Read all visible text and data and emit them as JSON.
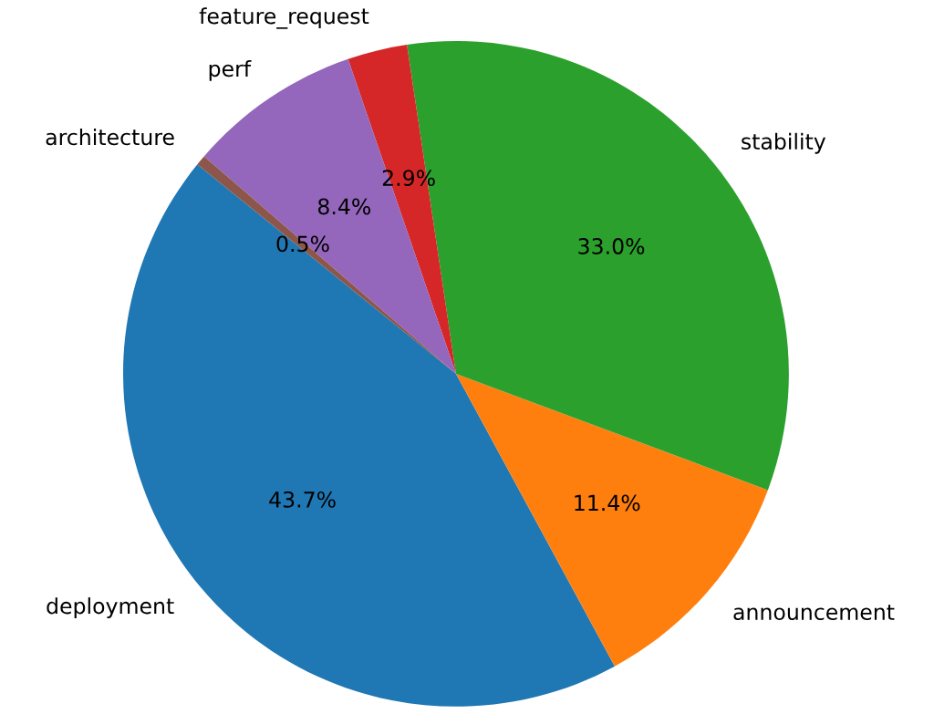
{
  "chart_data": {
    "type": "pie",
    "categories": [
      "deployment",
      "announcement",
      "stability",
      "feature_request",
      "perf",
      "architecture"
    ],
    "values": [
      43.7,
      11.4,
      33.0,
      2.9,
      8.4,
      0.5
    ],
    "colors": [
      "#1f77b4",
      "#ff7f0e",
      "#2ca02c",
      "#d62728",
      "#9467bd",
      "#8c564b"
    ],
    "value_labels": [
      "43.7%",
      "11.4%",
      "33.0%",
      "2.9%",
      "8.4%",
      "0.5%"
    ]
  }
}
